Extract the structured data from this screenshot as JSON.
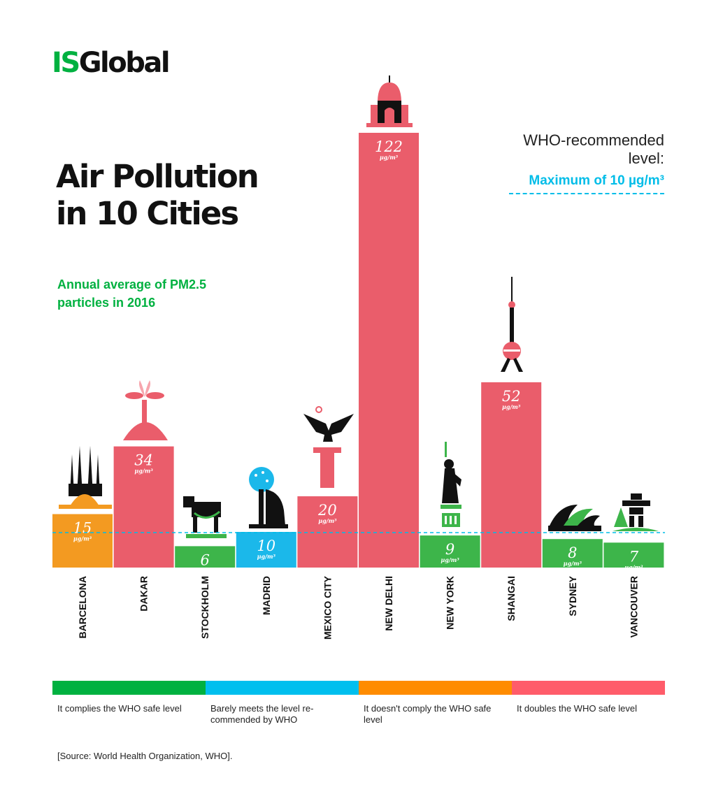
{
  "logo": {
    "part1": "IS",
    "part2": "Global"
  },
  "title": "Air Pollution in 10 Cities",
  "subtitle": "Annual average of PM2.5 particles in 2016",
  "who": {
    "text": "WHO-recommended level:",
    "max_label": "Maximum of 10 µg/m³",
    "color": "#00bde8"
  },
  "colors": {
    "complies": "#3db54a",
    "barely": "#1bb8ea",
    "not_comply": "#f39a21",
    "doubles": "#ea5d6b"
  },
  "chart_data": {
    "type": "bar",
    "categories": [
      "BARCELONA",
      "DAKAR",
      "STOCKHOLM",
      "MADRID",
      "MEXICO CITY",
      "NEW DELHI",
      "NEW YORK",
      "SHANGAI",
      "SYDNEY",
      "VANCOUVER"
    ],
    "values": [
      15,
      34,
      6,
      10,
      20,
      122,
      9,
      52,
      8,
      7
    ],
    "value_labels": [
      "15",
      "34",
      "6",
      "10",
      "20",
      "122",
      "9",
      "52",
      "8",
      "7"
    ],
    "unit": "µg/m³",
    "bar_colors": [
      "#f39a21",
      "#ea5d6b",
      "#3db54a",
      "#1bb8ea",
      "#ea5d6b",
      "#ea5d6b",
      "#3db54a",
      "#ea5d6b",
      "#3db54a",
      "#3db54a"
    ],
    "reference_line": {
      "value": 10,
      "style": "dashed",
      "color": "#00bde8"
    },
    "ylim": [
      0,
      122
    ]
  },
  "legend": [
    {
      "label": "It complies the WHO safe level",
      "color": "#00b140"
    },
    {
      "label": "Barely meets the level re-commended by WHO",
      "color": "#00bfee"
    },
    {
      "label": "It doesn't comply the WHO safe level",
      "color": "#ff8c00"
    },
    {
      "label": "It doubles the WHO safe level",
      "color": "#ff5c6a"
    }
  ],
  "source": "[Source: World Health Organization, WHO]."
}
